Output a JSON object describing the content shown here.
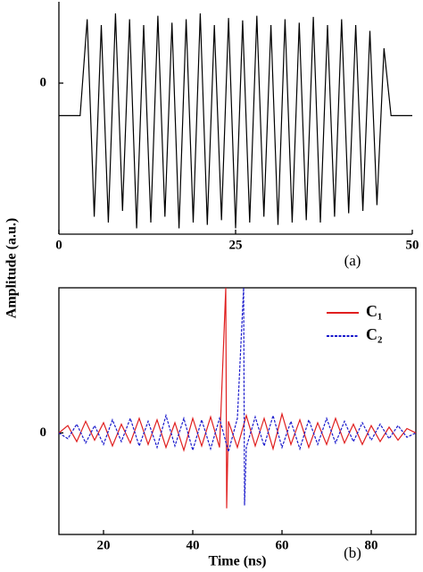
{
  "chart_data": [
    {
      "type": "line",
      "ylabel": "Amplitude (a.u.)",
      "label": "(a)",
      "xlim": [
        0,
        50
      ],
      "xticks": [
        0,
        25,
        50
      ],
      "ylim": [
        -1.3,
        0.7
      ],
      "yticks": [
        0
      ],
      "series": [
        {
          "color": "#000000",
          "dash": false,
          "x": [
            0,
            1,
            2,
            3,
            4,
            5,
            6,
            7,
            8,
            9,
            10,
            11,
            12,
            13,
            14,
            15,
            16,
            17,
            18,
            19,
            20,
            21,
            22,
            23,
            24,
            25,
            26,
            27,
            28,
            29,
            30,
            31,
            32,
            33,
            34,
            35,
            36,
            37,
            38,
            39,
            40,
            41,
            42,
            43,
            44,
            45,
            46,
            47,
            48,
            49,
            50
          ],
          "values": [
            -0.28,
            -0.28,
            -0.28,
            -0.28,
            0.55,
            -1.15,
            0.5,
            -1.2,
            0.6,
            -1.1,
            0.55,
            -1.25,
            0.5,
            -1.2,
            0.58,
            -1.15,
            0.52,
            -1.25,
            0.55,
            -1.2,
            0.6,
            -1.22,
            0.5,
            -1.18,
            0.56,
            -1.25,
            0.54,
            -1.2,
            0.58,
            -1.15,
            0.5,
            -1.22,
            0.55,
            -1.2,
            0.52,
            -1.18,
            0.57,
            -1.2,
            0.5,
            -1.15,
            0.55,
            -1.12,
            0.5,
            -1.1,
            0.45,
            -1.05,
            0.3,
            -0.28,
            -0.28,
            -0.28,
            -0.28
          ]
        }
      ]
    },
    {
      "type": "line",
      "xlabel": "Time (ns)",
      "label": "(b)",
      "xlim": [
        10,
        90
      ],
      "xticks": [
        20,
        40,
        60,
        80
      ],
      "ylim": [
        -0.7,
        1
      ],
      "yticks": [
        0
      ],
      "legend": "upper right",
      "series": [
        {
          "name": "C₁",
          "color": "#e02020",
          "dash": false,
          "x": [
            10,
            12,
            14,
            16,
            18,
            20,
            22,
            24,
            26,
            28,
            30,
            32,
            34,
            36,
            38,
            40,
            42,
            44,
            46,
            47.4,
            47.6,
            48,
            50,
            52,
            54,
            56,
            58,
            60,
            62,
            64,
            66,
            68,
            70,
            72,
            74,
            76,
            78,
            80,
            82,
            84,
            86,
            88,
            90
          ],
          "values": [
            0,
            0.05,
            -0.06,
            0.08,
            -0.05,
            0.07,
            -0.09,
            0.06,
            -0.07,
            0.1,
            -0.08,
            0.09,
            -0.1,
            0.07,
            -0.12,
            0.1,
            -0.09,
            0.11,
            -0.1,
            1.0,
            -0.52,
            0.08,
            -0.1,
            0.12,
            -0.09,
            0.1,
            -0.11,
            0.13,
            -0.08,
            0.09,
            -0.1,
            0.07,
            -0.08,
            0.1,
            -0.07,
            0.06,
            -0.08,
            0.05,
            -0.06,
            0.04,
            -0.05,
            0.03,
            0
          ]
        },
        {
          "name": "C₂",
          "color": "#1a1acc",
          "dash": true,
          "x": [
            10,
            12,
            14,
            16,
            18,
            20,
            22,
            24,
            26,
            28,
            30,
            32,
            34,
            36,
            38,
            40,
            42,
            44,
            46,
            48,
            50,
            51.4,
            51.6,
            52,
            54,
            56,
            58,
            60,
            62,
            64,
            66,
            68,
            70,
            72,
            74,
            76,
            78,
            80,
            82,
            84,
            86,
            88,
            90
          ],
          "values": [
            0,
            -0.04,
            0.06,
            -0.07,
            0.05,
            -0.08,
            0.09,
            -0.06,
            0.1,
            -0.09,
            0.08,
            -0.1,
            0.12,
            -0.09,
            0.1,
            -0.12,
            0.09,
            -0.11,
            0.1,
            -0.13,
            0.1,
            1.0,
            -0.5,
            -0.1,
            0.11,
            -0.09,
            0.12,
            -0.1,
            0.08,
            -0.11,
            0.09,
            -0.08,
            0.1,
            -0.07,
            0.08,
            -0.06,
            0.07,
            -0.05,
            0.06,
            -0.04,
            0.05,
            -0.03,
            0
          ]
        }
      ]
    }
  ]
}
